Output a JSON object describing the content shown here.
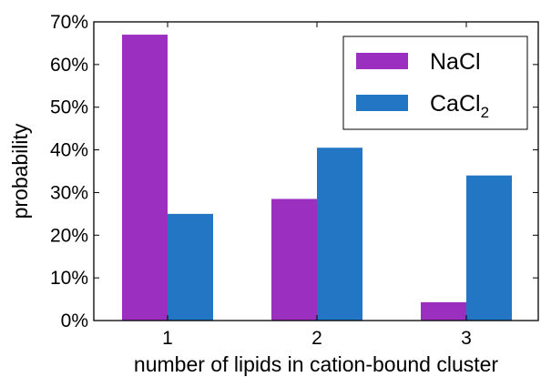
{
  "chart_data": {
    "type": "bar",
    "categories": [
      "1",
      "2",
      "3"
    ],
    "series": [
      {
        "name": "NaCl",
        "color": "#9b30c0",
        "values": [
          0.67,
          0.285,
          0.043
        ]
      },
      {
        "name": "CaCl",
        "name_subscript": "2",
        "color": "#2376c3",
        "values": [
          0.25,
          0.405,
          0.34
        ]
      }
    ],
    "xlabel": "number of lipids in cation-bound cluster",
    "ylabel": "probability",
    "ylim": [
      0,
      0.7
    ],
    "yticks": [
      0,
      0.1,
      0.2,
      0.3,
      0.4,
      0.5,
      0.6,
      0.7
    ],
    "ytick_labels": [
      "0%",
      "10%",
      "20%",
      "30%",
      "40%",
      "50%",
      "60%",
      "70%"
    ],
    "grid": false,
    "legend_position": "top-right"
  }
}
